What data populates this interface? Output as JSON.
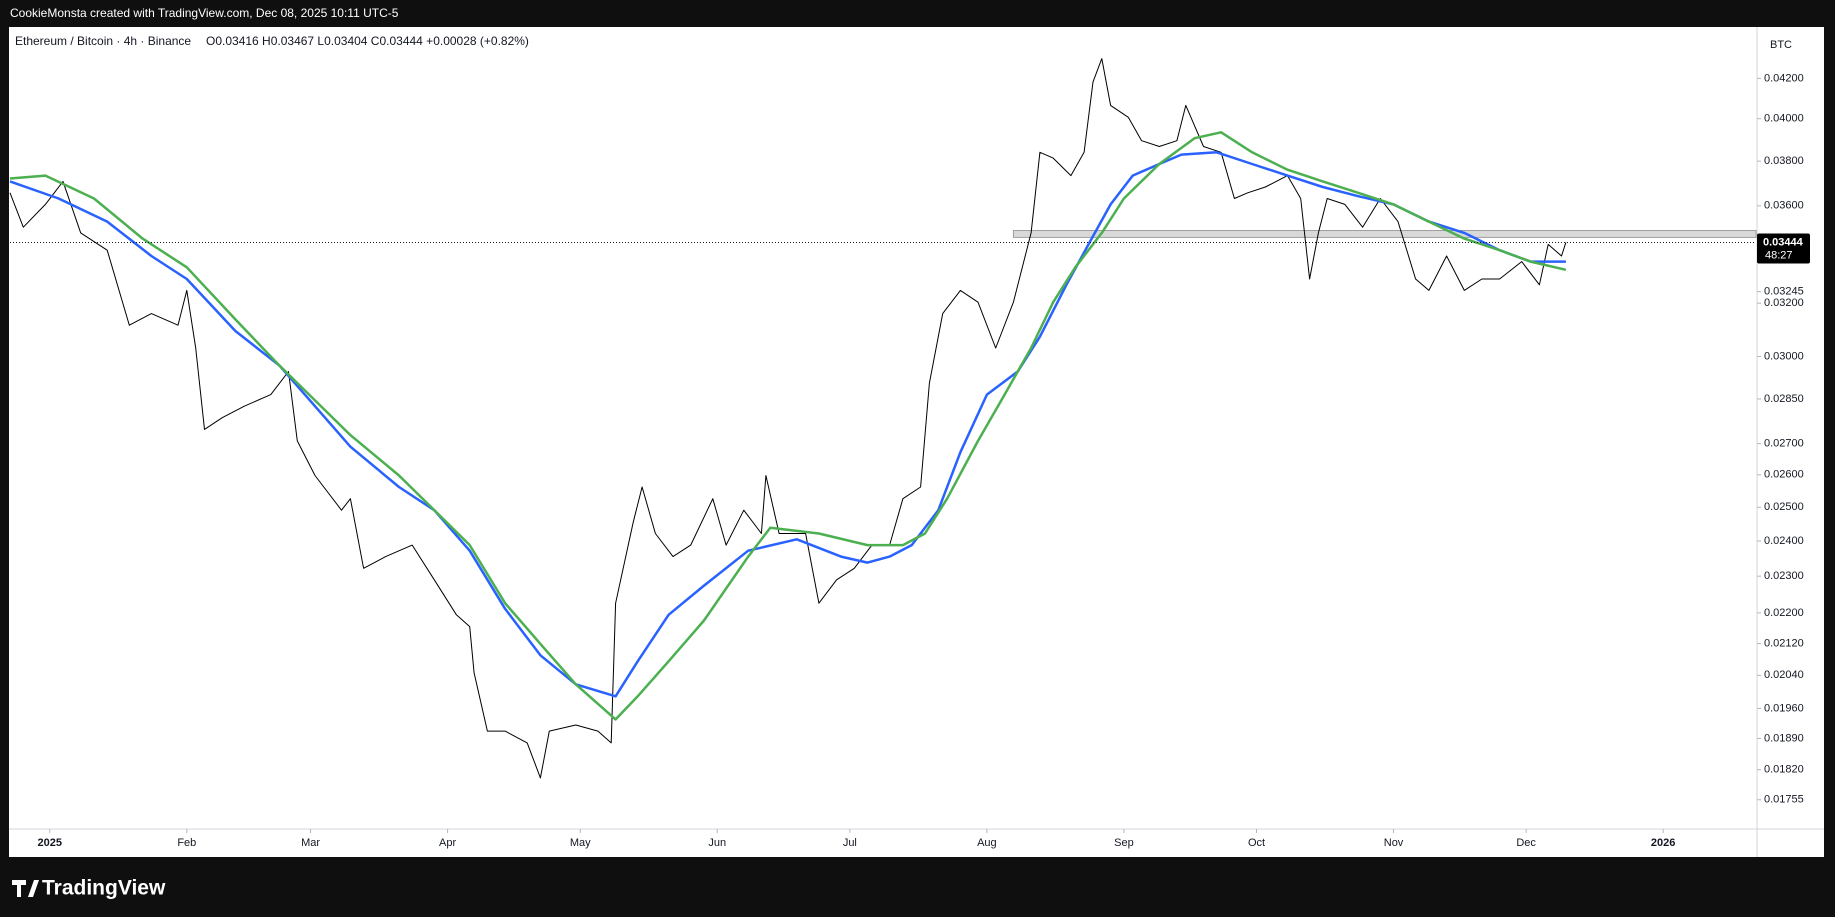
{
  "header": "CookieMonsta created with TradingView.com, Dec 08, 2025 10:11 UTC-5",
  "footer_logo": "TradingView",
  "chart_data": {
    "type": "line",
    "symbol": "Ethereum / Bitcoin · 4h · Binance",
    "ohlc": "O0.03416 H0.03467 L0.03404 C0.03444 +0.00028 (+0.82%)",
    "currency": "BTC",
    "log_scale": true,
    "grid": false,
    "xlim": [
      -9,
      386
    ],
    "ylim": [
      0.01696,
      0.04464
    ],
    "xticks": [
      {
        "value": 0,
        "label": "2025"
      },
      {
        "value": 31,
        "label": "Feb"
      },
      {
        "value": 59,
        "label": "Mar"
      },
      {
        "value": 90,
        "label": "Apr"
      },
      {
        "value": 120,
        "label": "May"
      },
      {
        "value": 151,
        "label": "Jun"
      },
      {
        "value": 181,
        "label": "Jul"
      },
      {
        "value": 212,
        "label": "Aug"
      },
      {
        "value": 243,
        "label": "Sep"
      },
      {
        "value": 273,
        "label": "Oct"
      },
      {
        "value": 304,
        "label": "Nov"
      },
      {
        "value": 334,
        "label": "Dec"
      },
      {
        "value": 365,
        "label": "2026"
      }
    ],
    "yticks": [
      {
        "value": 0.042,
        "label": "0.04200"
      },
      {
        "value": 0.04,
        "label": "0.04000"
      },
      {
        "value": 0.038,
        "label": "0.03800"
      },
      {
        "value": 0.036,
        "label": "0.03600"
      },
      0.03245,
      {
        "value": 0.032,
        "label": "0.03200"
      },
      {
        "value": 0.03,
        "label": "0.03000"
      },
      {
        "value": 0.0285,
        "label": "0.02850"
      },
      {
        "value": 0.027,
        "label": "0.02700"
      },
      {
        "value": 0.026,
        "label": "0.02600"
      },
      {
        "value": 0.025,
        "label": "0.02500"
      },
      {
        "value": 0.024,
        "label": "0.02400"
      },
      {
        "value": 0.023,
        "label": "0.02300"
      },
      {
        "value": 0.022,
        "label": "0.02200"
      },
      {
        "value": 0.0212,
        "label": "0.02120"
      },
      {
        "value": 0.0204,
        "label": "0.02040"
      },
      {
        "value": 0.0196,
        "label": "0.01960"
      },
      {
        "value": 0.0189,
        "label": "0.01890"
      },
      {
        "value": 0.0182,
        "label": "0.01820"
      },
      0.01755
    ],
    "last_price": 0.03444,
    "countdown": "48:27",
    "zone": {
      "x_start": 218,
      "range": [
        0.03465,
        0.03494
      ]
    },
    "series": [
      {
        "color": "#000000",
        "width": 1,
        "x": [
          -9,
          -6,
          -1,
          3,
          7,
          13,
          18,
          23,
          29,
          31,
          33,
          35,
          39,
          44,
          50,
          54,
          56,
          60,
          66,
          68,
          71,
          76,
          82,
          87,
          92,
          95,
          96,
          99,
          103,
          108,
          111,
          113,
          119,
          124,
          127,
          128,
          132,
          134,
          137,
          141,
          145,
          150,
          153,
          157,
          161,
          162,
          165,
          169,
          171,
          174,
          178,
          182,
          186,
          190,
          193,
          197,
          199,
          202,
          206,
          210,
          214,
          218,
          222,
          224,
          227,
          231,
          234,
          236,
          238,
          240,
          244,
          247,
          251,
          255,
          257,
          261,
          265,
          268,
          271,
          275,
          280,
          283,
          285,
          287,
          289,
          293,
          297,
          301,
          305,
          309,
          312,
          316,
          320,
          324,
          328,
          333,
          337,
          339,
          342,
          343
        ],
        "values": [
          0.03657,
          0.03508,
          0.03606,
          0.03708,
          0.03484,
          0.03412,
          0.03116,
          0.0316,
          0.03116,
          0.0325,
          0.03031,
          0.02747,
          0.02786,
          0.02825,
          0.02865,
          0.02946,
          0.02709,
          0.02598,
          0.02491,
          0.02526,
          0.02322,
          0.02355,
          0.02388,
          0.0229,
          0.02195,
          0.02164,
          0.02046,
          0.01907,
          0.01907,
          0.0188,
          0.01802,
          0.01907,
          0.01921,
          0.01907,
          0.0188,
          0.02226,
          0.02456,
          0.02562,
          0.02422,
          0.02355,
          0.02388,
          0.02526,
          0.02388,
          0.02491,
          0.02422,
          0.02598,
          0.02422,
          0.02422,
          0.02422,
          0.02226,
          0.0229,
          0.02322,
          0.02388,
          0.02388,
          0.02526,
          0.02562,
          0.02905,
          0.0316,
          0.0325,
          0.03204,
          0.03031,
          0.03204,
          0.03484,
          0.03841,
          0.03814,
          0.03734,
          0.03841,
          0.04182,
          0.04302,
          0.04065,
          0.04007,
          0.03895,
          0.03868,
          0.03895,
          0.04065,
          0.03868,
          0.03841,
          0.03632,
          0.03657,
          0.03683,
          0.03734,
          0.03632,
          0.03295,
          0.03484,
          0.03632,
          0.03606,
          0.03508,
          0.03632,
          0.03532,
          0.03295,
          0.0325,
          0.03388,
          0.0325,
          0.03295,
          0.03295,
          0.03365,
          0.03272,
          0.03436,
          0.03388,
          0.03444
        ]
      },
      {
        "color": "#2962ff",
        "width": 2.5,
        "x": [
          -9,
          2,
          13,
          23,
          31,
          42,
          52,
          60,
          68,
          79,
          87,
          95,
          103,
          111,
          119,
          128,
          133,
          140,
          148,
          158,
          169,
          179,
          185,
          190,
          195,
          201,
          206,
          212,
          219,
          224,
          230,
          235,
          240,
          245,
          251,
          256,
          264,
          272,
          280,
          288,
          296,
          304,
          312,
          320,
          328,
          335,
          343
        ],
        "values": [
          0.03708,
          0.03632,
          0.03532,
          0.03388,
          0.03295,
          0.03094,
          0.02967,
          0.02825,
          0.0269,
          0.02562,
          0.02491,
          0.02372,
          0.02211,
          0.0209,
          0.02018,
          0.01989,
          0.02075,
          0.02195,
          0.02274,
          0.02372,
          0.02405,
          0.02355,
          0.02338,
          0.02355,
          0.02388,
          0.02491,
          0.02672,
          0.02865,
          0.02946,
          0.03073,
          0.03272,
          0.03436,
          0.03606,
          0.03734,
          0.03787,
          0.0383,
          0.03841,
          0.03787,
          0.03734,
          0.03683,
          0.03642,
          0.03606,
          0.03532,
          0.03484,
          0.03412,
          0.03365,
          0.03365
        ]
      },
      {
        "color": "#4caf50",
        "width": 2.5,
        "x": [
          -9,
          -1,
          10,
          21,
          31,
          42,
          52,
          60,
          68,
          79,
          87,
          95,
          103,
          111,
          119,
          128,
          133,
          140,
          148,
          158,
          163,
          174,
          185,
          193,
          198,
          203,
          210,
          216,
          222,
          227,
          232,
          238,
          243,
          251,
          259,
          265,
          272,
          280,
          288,
          296,
          304,
          312,
          320,
          328,
          335,
          343
        ],
        "values": [
          0.03721,
          0.03734,
          0.03632,
          0.0346,
          0.03342,
          0.03138,
          0.02967,
          0.02845,
          0.02728,
          0.02598,
          0.02491,
          0.02388,
          0.02226,
          0.02119,
          0.02018,
          0.01934,
          0.01989,
          0.02075,
          0.0218,
          0.02355,
          0.02439,
          0.02422,
          0.02388,
          0.02388,
          0.02422,
          0.02526,
          0.02709,
          0.02865,
          0.03031,
          0.03204,
          0.03342,
          0.03484,
          0.03632,
          0.03787,
          0.03907,
          0.03935,
          0.03841,
          0.03761,
          0.03708,
          0.03657,
          0.03606,
          0.03532,
          0.0346,
          0.03412,
          0.03365,
          0.03332
        ]
      }
    ]
  }
}
